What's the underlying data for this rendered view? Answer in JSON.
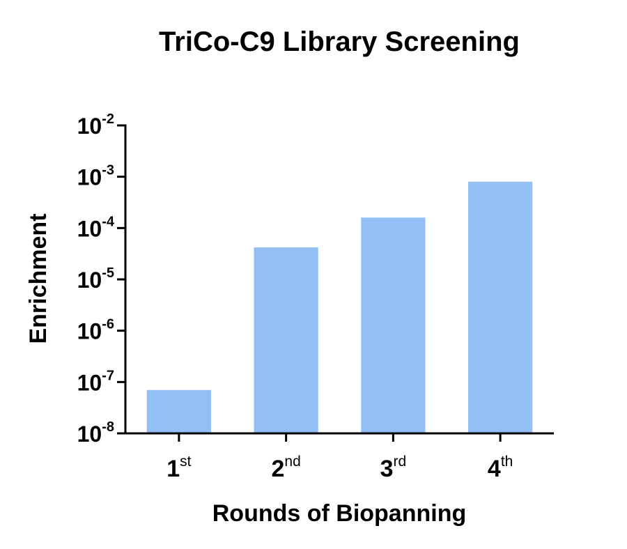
{
  "chart_data": {
    "type": "bar",
    "title": "TriCo-C9 Library Screening",
    "xlabel": "Rounds of Biopanning",
    "ylabel": "Enrichment",
    "yscale": "log",
    "ylim": [
      1e-08,
      0.01
    ],
    "grid": false,
    "legend": "none",
    "bar_color": "#93BFF7",
    "categories": [
      {
        "main": "1",
        "sup": "st"
      },
      {
        "main": "2",
        "sup": "nd"
      },
      {
        "main": "3",
        "sup": "rd"
      },
      {
        "main": "4",
        "sup": "th"
      }
    ],
    "values": [
      7e-08,
      4.2e-05,
      0.00016,
      0.0008
    ],
    "yticks": [
      {
        "base": "10",
        "exp": "-8"
      },
      {
        "base": "10",
        "exp": "-7"
      },
      {
        "base": "10",
        "exp": "-6"
      },
      {
        "base": "10",
        "exp": "-5"
      },
      {
        "base": "10",
        "exp": "-4"
      },
      {
        "base": "10",
        "exp": "-3"
      },
      {
        "base": "10",
        "exp": "-2"
      }
    ]
  }
}
